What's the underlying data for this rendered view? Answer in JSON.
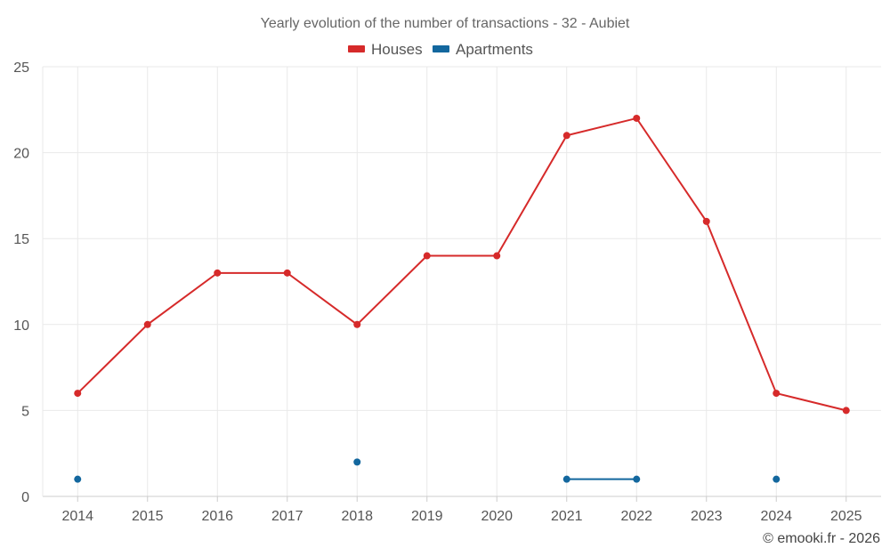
{
  "chart_data": {
    "type": "line",
    "title": "Yearly evolution of the number of transactions - 32 - Aubiet",
    "categories": [
      "2014",
      "2015",
      "2016",
      "2017",
      "2018",
      "2019",
      "2020",
      "2021",
      "2022",
      "2023",
      "2024",
      "2025"
    ],
    "y_ticks": [
      "0",
      "5",
      "10",
      "15",
      "20",
      "25"
    ],
    "ylim": [
      0,
      25
    ],
    "grid": true,
    "legend_position": "top-center",
    "series": [
      {
        "name": "Houses",
        "color": "#d62a2a",
        "values": [
          6,
          10,
          13,
          13,
          10,
          14,
          14,
          21,
          22,
          16,
          6,
          5
        ]
      },
      {
        "name": "Apartments",
        "color": "#13679e",
        "values": [
          1,
          null,
          null,
          null,
          2,
          null,
          null,
          1,
          1,
          null,
          1,
          null
        ]
      }
    ],
    "credit": "© emooki.fr - 2026"
  }
}
